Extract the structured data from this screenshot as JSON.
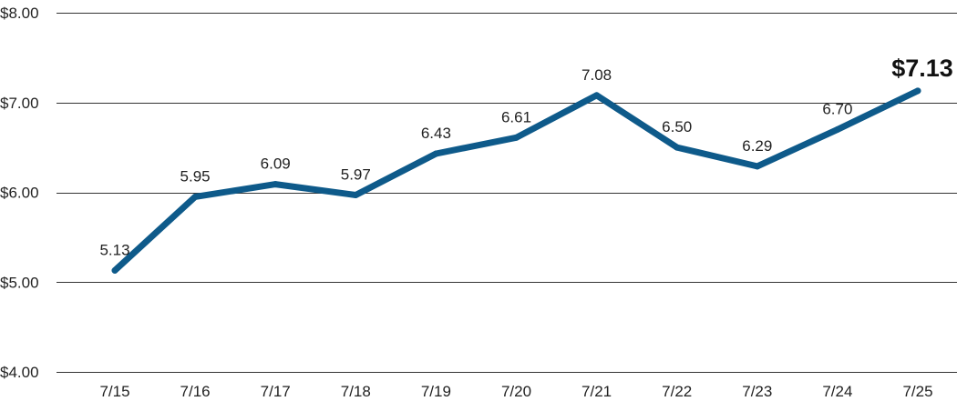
{
  "chart_data": {
    "type": "line",
    "categories": [
      "7/15",
      "7/16",
      "7/17",
      "7/18",
      "7/19",
      "7/20",
      "7/21",
      "7/22",
      "7/23",
      "7/24",
      "7/25"
    ],
    "series": [
      {
        "values": [
          5.13,
          5.95,
          6.09,
          5.97,
          6.43,
          6.61,
          7.08,
          6.5,
          6.29,
          6.7,
          7.13
        ]
      }
    ],
    "data_labels": [
      "5.13",
      "5.95",
      "6.09",
      "5.97",
      "6.43",
      "6.61",
      "7.08",
      "6.50",
      "6.29",
      "6.70",
      "$7.13"
    ],
    "highlight_last_label": true,
    "y_ticks": [
      {
        "value": 8,
        "label": "$8.00"
      },
      {
        "value": 7,
        "label": "$7.00"
      },
      {
        "value": 6,
        "label": "$6.00"
      },
      {
        "value": 5,
        "label": "$5.00"
      },
      {
        "value": 4,
        "label": "$4.00"
      }
    ],
    "ylim": [
      4,
      8
    ],
    "grid": "horizontal",
    "line_color": "#0e5a8a",
    "grid_color": "#333333",
    "title": "",
    "xlabel": "",
    "ylabel": ""
  }
}
